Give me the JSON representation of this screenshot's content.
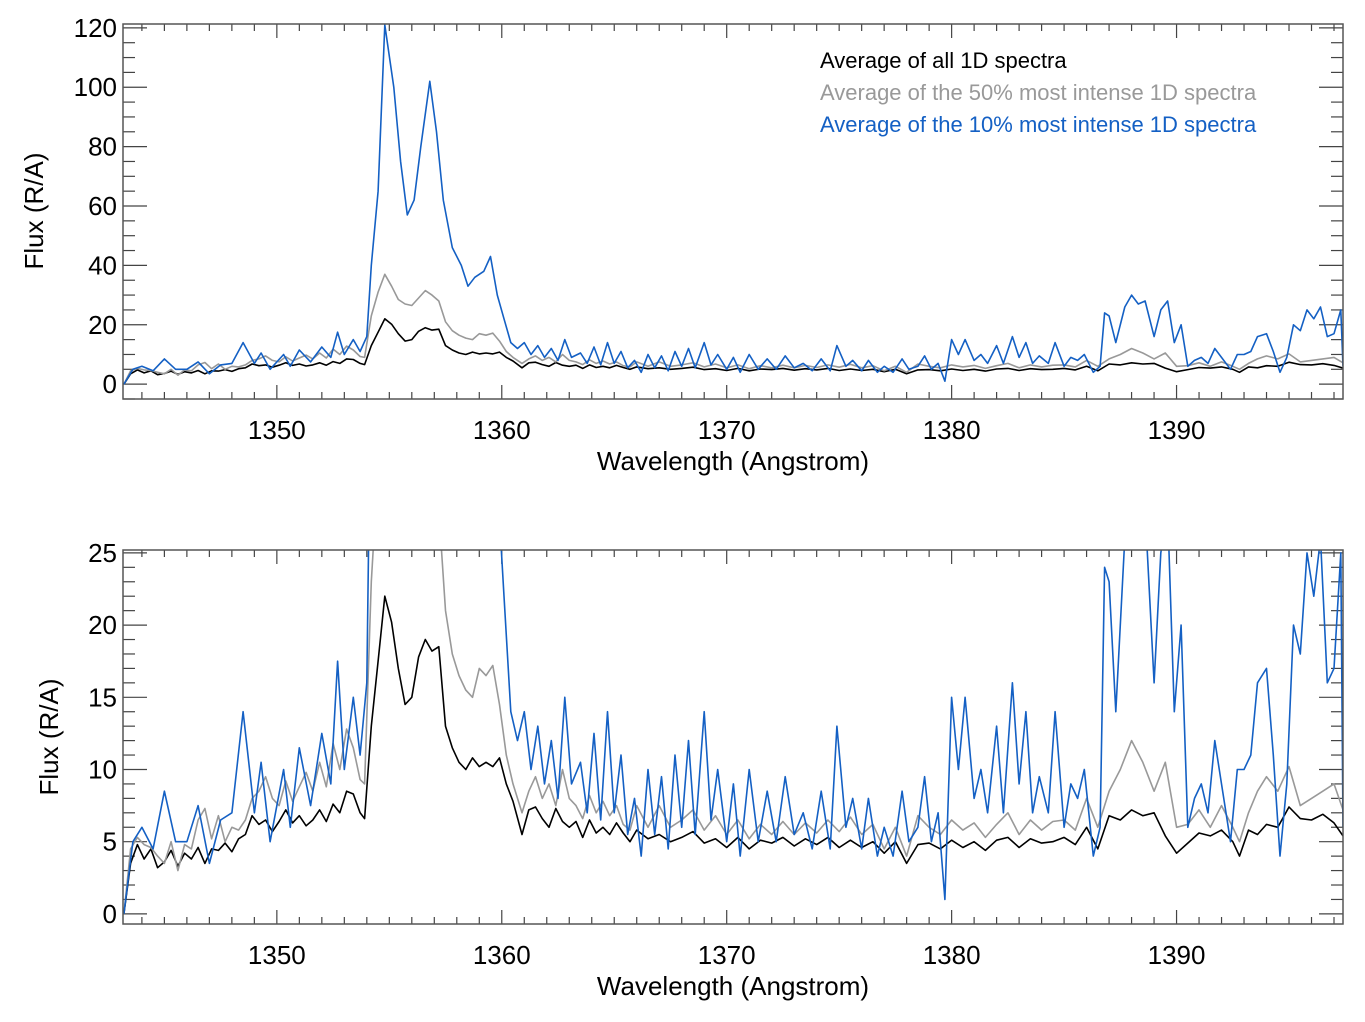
{
  "chart_data": [
    {
      "type": "line",
      "panel": "top",
      "title": "",
      "xlabel": "Wavelength (Angstrom)",
      "ylabel": "Flux (R/A)",
      "xlim": [
        1343.16,
        1397.4
      ],
      "ylim": [
        -5,
        121.3
      ],
      "xticks": [
        1350,
        1360,
        1370,
        1380,
        1390
      ],
      "xtick_labels": [
        "1350",
        "1360",
        "1370",
        "1380",
        "1390"
      ],
      "x_minor_step": 1,
      "yticks": [
        0,
        20,
        40,
        60,
        80,
        100,
        120
      ],
      "ytick_labels": [
        "0",
        "20",
        "40",
        "60",
        "80",
        "100",
        "120"
      ],
      "y_minor_step": 5,
      "grid": false,
      "legend_placement": "top-right",
      "legend": [
        {
          "label": "Average of all 1D spectra",
          "series": "all"
        },
        {
          "label": "Average of the 50% most intense 1D spectra",
          "series": "p50"
        },
        {
          "label": "Average of the 10% most intense 1D spectra",
          "series": "p10"
        }
      ]
    },
    {
      "type": "line",
      "panel": "bottom",
      "title": "",
      "xlabel": "Wavelength (Angstrom)",
      "ylabel": "Flux (R/A)",
      "xlim": [
        1343.16,
        1397.4
      ],
      "ylim": [
        -0.7,
        25.2
      ],
      "xticks": [
        1350,
        1360,
        1370,
        1380,
        1390
      ],
      "xtick_labels": [
        "1350",
        "1360",
        "1370",
        "1380",
        "1390"
      ],
      "x_minor_step": 1,
      "yticks": [
        0,
        5,
        10,
        15,
        20,
        25
      ],
      "ytick_labels": [
        "0",
        "5",
        "10",
        "15",
        "20",
        "25"
      ],
      "y_minor_step": 1,
      "grid": false
    }
  ],
  "series": [
    {
      "id": "all",
      "name": "Average of all 1D spectra",
      "color": "#000000",
      "x": [
        1343.2,
        1343.5,
        1343.8,
        1344.1,
        1344.4,
        1344.7,
        1345.0,
        1345.3,
        1345.6,
        1345.9,
        1346.2,
        1346.5,
        1346.8,
        1347.1,
        1347.4,
        1347.7,
        1348.0,
        1348.3,
        1348.6,
        1348.9,
        1349.2,
        1349.5,
        1349.8,
        1350.1,
        1350.4,
        1350.7,
        1351.0,
        1351.3,
        1351.6,
        1351.9,
        1352.2,
        1352.5,
        1352.8,
        1353.1,
        1353.4,
        1353.7,
        1353.9,
        1354.2,
        1354.5,
        1354.8,
        1355.1,
        1355.4,
        1355.7,
        1356.0,
        1356.3,
        1356.6,
        1356.9,
        1357.2,
        1357.5,
        1357.8,
        1358.1,
        1358.4,
        1358.7,
        1359.0,
        1359.3,
        1359.6,
        1359.9,
        1360.2,
        1360.5,
        1360.9,
        1361.2,
        1361.5,
        1361.8,
        1362.1,
        1362.4,
        1362.7,
        1363.0,
        1363.3,
        1363.6,
        1363.9,
        1364.2,
        1364.5,
        1364.8,
        1365.1,
        1365.4,
        1365.7,
        1366.0,
        1366.5,
        1367.0,
        1367.5,
        1368.0,
        1368.5,
        1369.0,
        1369.5,
        1370.0,
        1370.5,
        1371.0,
        1371.5,
        1372.0,
        1372.5,
        1373.0,
        1373.5,
        1374.0,
        1374.5,
        1375.0,
        1375.5,
        1376.0,
        1376.5,
        1377.0,
        1377.5,
        1378.0,
        1378.5,
        1379.0,
        1379.5,
        1380.0,
        1380.5,
        1381.0,
        1381.5,
        1382.0,
        1382.5,
        1383.0,
        1383.5,
        1384.0,
        1384.5,
        1385.0,
        1385.5,
        1386.0,
        1386.5,
        1387.0,
        1387.5,
        1388.0,
        1388.5,
        1389.0,
        1389.5,
        1390.0,
        1390.5,
        1391.0,
        1391.5,
        1392.0,
        1392.5,
        1392.8,
        1393.2,
        1393.6,
        1394.0,
        1394.5,
        1395.0,
        1395.5,
        1396.0,
        1396.5,
        1397.0,
        1397.4
      ],
      "y": [
        0.0,
        3.5,
        4.8,
        3.8,
        4.5,
        3.2,
        3.6,
        4.4,
        3.3,
        4.2,
        3.8,
        4.6,
        3.5,
        4.5,
        4.4,
        4.9,
        4.3,
        5.2,
        5.5,
        6.8,
        6.2,
        6.5,
        5.7,
        6.4,
        7.2,
        6.3,
        6.8,
        6.1,
        6.5,
        7.2,
        6.4,
        7.6,
        7.0,
        8.5,
        8.3,
        7.0,
        6.6,
        13.0,
        17.5,
        22.0,
        20.2,
        17.0,
        14.5,
        15.0,
        17.8,
        19.0,
        18.2,
        18.5,
        13.0,
        11.5,
        10.5,
        10.0,
        10.8,
        10.2,
        10.5,
        10.2,
        10.8,
        9.0,
        7.8,
        5.5,
        7.2,
        7.4,
        6.6,
        6.0,
        7.3,
        6.4,
        6.0,
        6.4,
        5.3,
        6.5,
        5.6,
        6.0,
        5.5,
        6.3,
        5.6,
        5.0,
        5.8,
        5.2,
        5.5,
        5.0,
        5.3,
        5.7,
        4.9,
        5.2,
        4.6,
        5.3,
        4.5,
        5.1,
        4.9,
        5.3,
        4.7,
        5.2,
        4.8,
        5.3,
        4.6,
        5.1,
        4.6,
        5.0,
        4.2,
        5.0,
        3.5,
        4.8,
        4.9,
        4.5,
        5.1,
        4.6,
        5.0,
        4.4,
        5.1,
        5.3,
        4.6,
        5.2,
        4.9,
        5.0,
        5.3,
        4.8,
        6.0,
        4.5,
        6.8,
        6.5,
        7.2,
        6.8,
        7.0,
        5.4,
        4.2,
        4.9,
        5.6,
        5.4,
        5.8,
        5.0,
        4.0,
        5.8,
        5.5,
        6.2,
        6.0,
        7.4,
        6.6,
        6.5,
        6.9,
        6.3,
        5.4
      ]
    },
    {
      "id": "p50",
      "name": "Average of the 50% most intense 1D spectra",
      "color": "#999999",
      "x": [
        1343.2,
        1343.5,
        1343.8,
        1344.1,
        1344.4,
        1344.7,
        1345.0,
        1345.3,
        1345.6,
        1345.9,
        1346.2,
        1346.5,
        1346.8,
        1347.1,
        1347.4,
        1347.7,
        1348.0,
        1348.3,
        1348.6,
        1348.9,
        1349.2,
        1349.5,
        1349.8,
        1350.1,
        1350.4,
        1350.7,
        1351.0,
        1351.3,
        1351.6,
        1351.9,
        1352.2,
        1352.5,
        1352.8,
        1353.1,
        1353.4,
        1353.7,
        1353.9,
        1354.2,
        1354.5,
        1354.8,
        1355.1,
        1355.4,
        1355.7,
        1356.0,
        1356.3,
        1356.6,
        1356.9,
        1357.2,
        1357.5,
        1357.8,
        1358.1,
        1358.4,
        1358.7,
        1359.0,
        1359.3,
        1359.6,
        1359.9,
        1360.2,
        1360.5,
        1360.9,
        1361.2,
        1361.5,
        1361.8,
        1362.1,
        1362.4,
        1362.7,
        1363.0,
        1363.3,
        1363.6,
        1363.9,
        1364.2,
        1364.5,
        1364.8,
        1365.1,
        1365.4,
        1365.7,
        1366.0,
        1366.5,
        1367.0,
        1367.5,
        1368.0,
        1368.5,
        1369.0,
        1369.5,
        1370.0,
        1370.5,
        1371.0,
        1371.5,
        1372.0,
        1372.5,
        1373.0,
        1373.5,
        1374.0,
        1374.5,
        1375.0,
        1375.5,
        1376.0,
        1376.5,
        1377.0,
        1377.5,
        1378.0,
        1378.5,
        1379.0,
        1379.5,
        1380.0,
        1380.5,
        1381.0,
        1381.5,
        1382.0,
        1382.5,
        1383.0,
        1383.5,
        1384.0,
        1384.5,
        1385.0,
        1385.5,
        1386.0,
        1386.5,
        1387.0,
        1387.5,
        1388.0,
        1388.5,
        1389.0,
        1389.5,
        1390.0,
        1390.5,
        1391.0,
        1391.5,
        1392.0,
        1392.5,
        1392.8,
        1393.2,
        1393.6,
        1394.0,
        1394.5,
        1395.0,
        1395.5,
        1396.0,
        1396.5,
        1397.0,
        1397.4
      ],
      "y": [
        0.0,
        4.5,
        5.3,
        4.8,
        4.6,
        4.0,
        3.5,
        5.0,
        3.0,
        4.8,
        4.5,
        6.5,
        7.3,
        5.2,
        6.8,
        5.0,
        6.0,
        5.8,
        6.5,
        8.0,
        8.5,
        9.5,
        8.0,
        7.5,
        9.2,
        7.8,
        8.8,
        9.8,
        8.5,
        10.5,
        8.8,
        11.8,
        10.0,
        12.8,
        11.5,
        9.3,
        9.0,
        23.0,
        31.0,
        37.0,
        33.0,
        28.5,
        27.0,
        26.5,
        29.0,
        31.5,
        30.0,
        28.0,
        21.0,
        18.0,
        16.5,
        15.5,
        15.0,
        17.0,
        16.5,
        17.2,
        14.5,
        11.0,
        9.0,
        7.0,
        8.5,
        9.5,
        8.0,
        9.0,
        7.5,
        10.0,
        8.0,
        7.5,
        6.6,
        8.2,
        7.0,
        7.8,
        6.8,
        7.5,
        6.2,
        5.8,
        7.5,
        6.0,
        7.5,
        6.0,
        6.5,
        7.2,
        5.8,
        6.8,
        5.5,
        6.5,
        5.2,
        6.2,
        5.5,
        6.4,
        5.5,
        6.3,
        5.6,
        6.5,
        5.7,
        6.7,
        5.5,
        6.2,
        4.5,
        6.0,
        4.0,
        6.8,
        6.0,
        5.5,
        6.5,
        5.8,
        6.3,
        5.3,
        6.2,
        7.0,
        5.5,
        6.5,
        5.8,
        6.4,
        6.5,
        5.8,
        8.0,
        6.0,
        8.5,
        10.0,
        12.0,
        10.5,
        8.5,
        10.5,
        6.0,
        6.2,
        7.2,
        6.0,
        7.5,
        6.0,
        5.0,
        7.0,
        8.5,
        9.5,
        8.5,
        10.2,
        7.5,
        8.0,
        8.5,
        9.0,
        7.2
      ]
    },
    {
      "id": "p10",
      "name": "Average of the 10% most intense 1D spectra",
      "color": "#1460C4",
      "x": [
        1343.2,
        1343.6,
        1344.0,
        1344.5,
        1345.0,
        1345.5,
        1346.0,
        1346.5,
        1347.0,
        1347.5,
        1348.0,
        1348.5,
        1349.0,
        1349.3,
        1349.7,
        1350.3,
        1350.6,
        1351.0,
        1351.5,
        1352.0,
        1352.4,
        1352.7,
        1353.0,
        1353.4,
        1353.7,
        1354.0,
        1354.2,
        1354.5,
        1354.8,
        1355.2,
        1355.5,
        1355.8,
        1356.1,
        1356.4,
        1356.8,
        1357.1,
        1357.4,
        1357.8,
        1358.2,
        1358.5,
        1358.8,
        1359.2,
        1359.5,
        1359.8,
        1360.1,
        1360.4,
        1360.7,
        1361.0,
        1361.3,
        1361.6,
        1361.9,
        1362.2,
        1362.5,
        1362.8,
        1363.1,
        1363.5,
        1363.8,
        1364.1,
        1364.4,
        1364.7,
        1365.0,
        1365.3,
        1365.6,
        1365.9,
        1366.2,
        1366.5,
        1366.8,
        1367.1,
        1367.4,
        1367.7,
        1368.0,
        1368.3,
        1368.6,
        1369.0,
        1369.3,
        1369.6,
        1370.0,
        1370.3,
        1370.6,
        1371.0,
        1371.4,
        1371.8,
        1372.2,
        1372.6,
        1373.0,
        1373.4,
        1373.8,
        1374.2,
        1374.6,
        1374.9,
        1375.3,
        1375.6,
        1376.0,
        1376.3,
        1376.7,
        1377.0,
        1377.4,
        1377.8,
        1378.1,
        1378.5,
        1378.8,
        1379.1,
        1379.4,
        1379.7,
        1380.0,
        1380.3,
        1380.6,
        1381.0,
        1381.3,
        1381.6,
        1382.0,
        1382.3,
        1382.7,
        1383.0,
        1383.3,
        1383.6,
        1383.9,
        1384.3,
        1384.6,
        1385.0,
        1385.3,
        1385.6,
        1385.9,
        1386.3,
        1386.6,
        1386.8,
        1387.0,
        1387.3,
        1387.7,
        1388.0,
        1388.3,
        1388.6,
        1389.0,
        1389.3,
        1389.6,
        1389.9,
        1390.2,
        1390.5,
        1390.8,
        1391.1,
        1391.4,
        1391.7,
        1392.0,
        1392.4,
        1392.7,
        1393.0,
        1393.3,
        1393.6,
        1394.0,
        1394.3,
        1394.6,
        1394.9,
        1395.2,
        1395.5,
        1395.8,
        1396.1,
        1396.4,
        1396.7,
        1397.0,
        1397.3,
        1397.4
      ],
      "y": [
        0.0,
        5.0,
        6.0,
        4.5,
        8.5,
        5.0,
        5.0,
        7.5,
        3.5,
        6.5,
        7.0,
        14.0,
        7.0,
        10.5,
        5.0,
        10.0,
        6.0,
        11.5,
        7.5,
        12.5,
        9.0,
        17.5,
        10.0,
        15.0,
        11.0,
        16.0,
        40.0,
        65.0,
        121.0,
        100.0,
        75.0,
        57.0,
        62.0,
        80.0,
        102.0,
        85.0,
        62.0,
        46.0,
        40.0,
        33.0,
        36.0,
        38.0,
        43.0,
        30.0,
        22.0,
        14.0,
        12.0,
        14.0,
        10.0,
        13.0,
        9.0,
        12.0,
        8.0,
        15.0,
        9.0,
        10.5,
        7.0,
        12.5,
        6.5,
        14.0,
        7.0,
        11.0,
        5.5,
        8.0,
        4.0,
        10.0,
        5.5,
        9.5,
        4.5,
        11.0,
        6.0,
        12.0,
        5.5,
        14.0,
        6.5,
        10.0,
        5.0,
        9.0,
        4.0,
        10.0,
        5.0,
        8.5,
        5.0,
        9.5,
        5.5,
        7.0,
        4.5,
        8.5,
        4.5,
        13.0,
        6.0,
        8.0,
        4.5,
        8.0,
        4.0,
        6.0,
        4.0,
        8.5,
        5.0,
        6.0,
        9.5,
        5.0,
        7.0,
        1.0,
        15.0,
        10.0,
        15.0,
        8.0,
        10.0,
        7.0,
        13.0,
        7.0,
        16.0,
        9.0,
        14.0,
        7.0,
        9.5,
        7.0,
        14.0,
        6.0,
        9.0,
        8.0,
        10.0,
        4.0,
        6.0,
        24.0,
        23.0,
        14.0,
        26.0,
        30.0,
        27.0,
        28.0,
        16.0,
        25.0,
        28.0,
        14.0,
        20.0,
        6.0,
        8.0,
        9.0,
        7.0,
        12.0,
        9.0,
        5.0,
        10.0,
        10.0,
        11.0,
        16.0,
        17.0,
        11.0,
        4.0,
        9.0,
        20.0,
        18.0,
        25.0,
        22.0,
        26.0,
        16.0,
        17.0,
        25.0,
        6.0
      ]
    }
  ]
}
